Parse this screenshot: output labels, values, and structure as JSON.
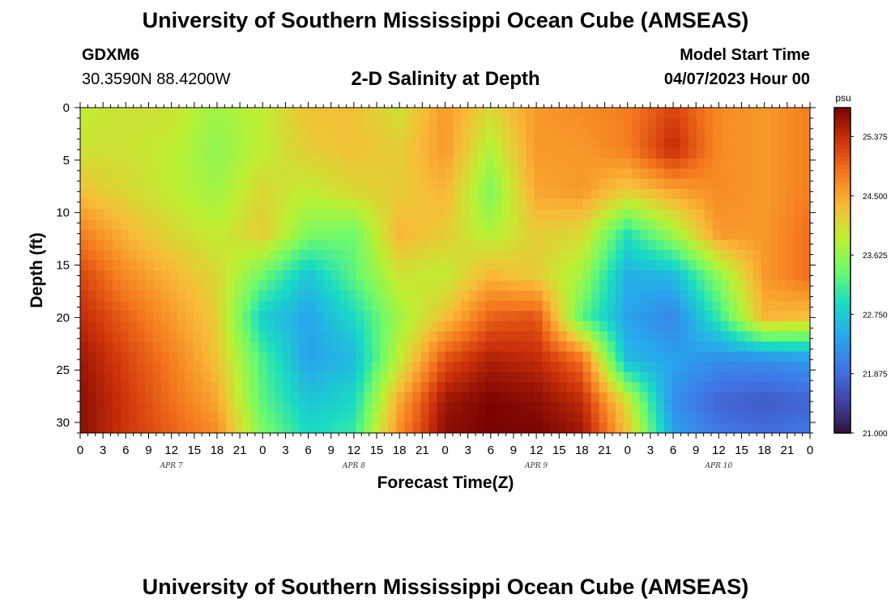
{
  "header": {
    "title": "University of Southern Mississippi Ocean Cube (AMSEAS)",
    "station_id": "GDXM6",
    "location": "30.3590N  88.4200W",
    "subtitle": "2-D Salinity at Depth",
    "model_label": "Model Start Time",
    "model_time": "04/07/2023 Hour 00"
  },
  "footer": {
    "title": "University of Southern Mississippi Ocean Cube (AMSEAS)"
  },
  "chart_data": {
    "type": "heatmap",
    "title": "2-D Salinity at Depth",
    "xlabel": "Forecast Time(Z)",
    "ylabel": "Depth (ft)",
    "x_range_hours": [
      0,
      96
    ],
    "ylim": [
      0,
      31
    ],
    "y_inverted": true,
    "x_tick_labels": [
      "0",
      "3",
      "6",
      "9",
      "12",
      "15",
      "18",
      "21",
      "0",
      "3",
      "6",
      "9",
      "12",
      "15",
      "18",
      "21",
      "0",
      "3",
      "6",
      "9",
      "12",
      "15",
      "18",
      "21",
      "0",
      "3",
      "6",
      "9",
      "12",
      "15",
      "18",
      "21",
      "0"
    ],
    "x_day_labels": [
      "APR 7",
      "APR 8",
      "APR 9",
      "APR 10"
    ],
    "y_ticks": [
      0,
      5,
      10,
      15,
      20,
      25,
      30
    ],
    "colorbar": {
      "unit": "psu",
      "min": 21.0,
      "max": 25.8,
      "tick_labels": [
        "25.375",
        "24.500",
        "23.625",
        "22.750",
        "21.875",
        "21.000"
      ],
      "tick_values": [
        25.375,
        24.5,
        23.625,
        22.75,
        21.875,
        21.0
      ]
    },
    "time_hours": [
      0,
      6,
      12,
      18,
      24,
      30,
      36,
      42,
      48,
      54,
      60,
      66,
      72,
      78,
      84,
      90,
      96
    ],
    "depth_ft": [
      0,
      4,
      8,
      12,
      16,
      20,
      24,
      28,
      31
    ],
    "salinity": [
      [
        23.9,
        24.0,
        24.0,
        23.7,
        23.9,
        24.3,
        24.3,
        24.0,
        24.6,
        24.1,
        24.6,
        24.7,
        24.8,
        25.2,
        24.7,
        24.6,
        24.8
      ],
      [
        24.0,
        24.0,
        23.9,
        23.6,
        23.9,
        24.2,
        24.3,
        24.2,
        24.6,
        23.8,
        24.6,
        24.6,
        24.8,
        25.4,
        24.7,
        24.6,
        24.8
      ],
      [
        24.3,
        24.1,
        23.9,
        23.7,
        24.1,
        23.9,
        24.1,
        24.2,
        24.4,
        23.5,
        24.5,
        24.6,
        24.2,
        24.5,
        24.7,
        24.6,
        24.8
      ],
      [
        24.8,
        24.4,
        24.1,
        23.9,
        24.2,
        23.5,
        23.4,
        24.4,
        24.2,
        23.8,
        24.2,
        24.1,
        23.0,
        23.7,
        24.6,
        24.6,
        24.9
      ],
      [
        25.2,
        24.7,
        24.4,
        24.1,
        23.4,
        22.7,
        23.3,
        24.0,
        23.9,
        24.4,
        24.2,
        23.7,
        22.5,
        22.6,
        23.6,
        24.6,
        24.9
      ],
      [
        25.4,
        25.0,
        24.6,
        24.2,
        22.8,
        22.4,
        22.9,
        23.7,
        24.3,
        25.0,
        25.1,
        23.3,
        22.4,
        22.1,
        23.1,
        24.4,
        24.3
      ],
      [
        25.6,
        25.2,
        24.8,
        24.3,
        23.2,
        22.4,
        22.6,
        23.9,
        25.1,
        25.5,
        25.4,
        24.9,
        22.6,
        22.4,
        22.2,
        22.2,
        22.3
      ],
      [
        25.7,
        25.3,
        24.9,
        24.5,
        23.3,
        22.7,
        22.9,
        24.5,
        25.6,
        25.8,
        25.7,
        25.4,
        24.0,
        22.2,
        21.8,
        21.7,
        21.8
      ],
      [
        25.7,
        25.3,
        25.0,
        24.7,
        23.5,
        22.9,
        23.1,
        24.7,
        25.7,
        25.8,
        25.8,
        25.6,
        24.3,
        22.4,
        22.0,
        21.9,
        22.0
      ]
    ],
    "grid": false,
    "legend": "colorbar-right"
  }
}
